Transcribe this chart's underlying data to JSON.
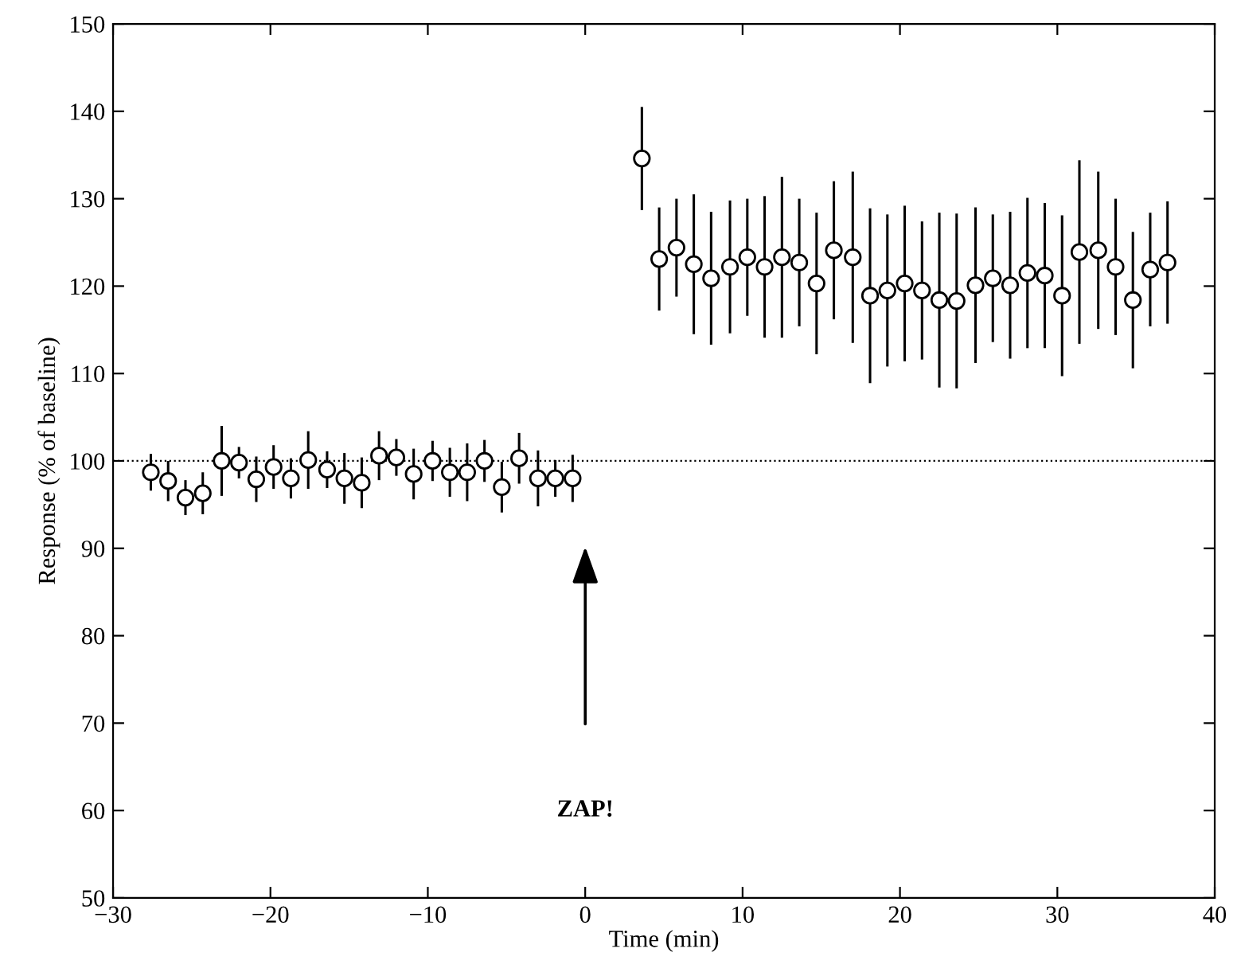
{
  "chart_data": {
    "type": "scatter",
    "xlabel": "Time (min)",
    "ylabel": "Response (% of baseline)",
    "xlim": [
      -30,
      40
    ],
    "xticks": [
      -30,
      -20,
      -10,
      0,
      10,
      20,
      30,
      40
    ],
    "ylim": [
      50,
      150
    ],
    "yticks": [
      50,
      60,
      70,
      80,
      90,
      100,
      110,
      120,
      130,
      140,
      150
    ],
    "grid": false,
    "legend": false,
    "marker": "circle",
    "series": [
      {
        "color": "#000000",
        "x": [
          -27.6,
          -26.5,
          -25.4,
          -24.3,
          -23.1,
          -22.0,
          -20.9,
          -19.8,
          -18.7,
          -17.6,
          -16.4,
          -15.3,
          -14.2,
          -13.1,
          -12.0,
          -10.9,
          -9.7,
          -8.6,
          -7.5,
          -6.4,
          -5.3,
          -4.2,
          -3.0,
          -1.9,
          -0.8,
          3.6,
          4.7,
          5.8,
          6.9,
          8.0,
          9.2,
          10.3,
          11.4,
          12.5,
          13.6,
          14.7,
          15.8,
          17.0,
          18.1,
          19.2,
          20.3,
          21.4,
          22.5,
          23.6,
          24.8,
          25.9,
          27.0,
          28.1,
          29.2,
          30.3,
          31.4,
          32.6,
          33.7,
          34.8,
          35.9,
          37.0
        ],
        "values": [
          98.7,
          97.7,
          95.8,
          96.3,
          100.0,
          99.8,
          97.9,
          99.3,
          98.0,
          100.1,
          99.0,
          98.0,
          97.5,
          100.6,
          100.4,
          98.5,
          100.0,
          98.7,
          98.7,
          100.0,
          97.0,
          100.3,
          98.0,
          98.0,
          98.0,
          134.6,
          123.1,
          124.4,
          122.5,
          120.9,
          122.2,
          123.3,
          122.2,
          123.3,
          122.7,
          120.3,
          124.1,
          123.3,
          118.9,
          119.5,
          120.3,
          119.5,
          118.4,
          118.3,
          120.1,
          120.9,
          120.1,
          121.5,
          121.2,
          118.9,
          123.9,
          124.1,
          122.2,
          118.4,
          121.9,
          122.7
        ],
        "errors": [
          2.1,
          2.3,
          2.0,
          2.4,
          4.0,
          1.8,
          2.6,
          2.5,
          2.3,
          3.3,
          2.1,
          2.9,
          2.9,
          2.8,
          2.1,
          2.9,
          2.3,
          2.8,
          3.3,
          2.4,
          2.9,
          2.9,
          3.2,
          2.1,
          2.7,
          5.9,
          5.9,
          5.6,
          8.0,
          7.6,
          7.6,
          6.7,
          8.1,
          9.2,
          7.3,
          8.1,
          7.9,
          9.8,
          10.0,
          8.7,
          8.9,
          7.9,
          10.0,
          10.0,
          8.9,
          7.3,
          8.4,
          8.6,
          8.3,
          9.2,
          10.5,
          9.0,
          7.8,
          7.8,
          6.5,
          7.0
        ]
      }
    ],
    "ref_lines": [
      {
        "axis": "y",
        "value": 100,
        "color": "#000000",
        "line_style": "dotted"
      }
    ],
    "annotations": [
      "ZAP!"
    ]
  }
}
